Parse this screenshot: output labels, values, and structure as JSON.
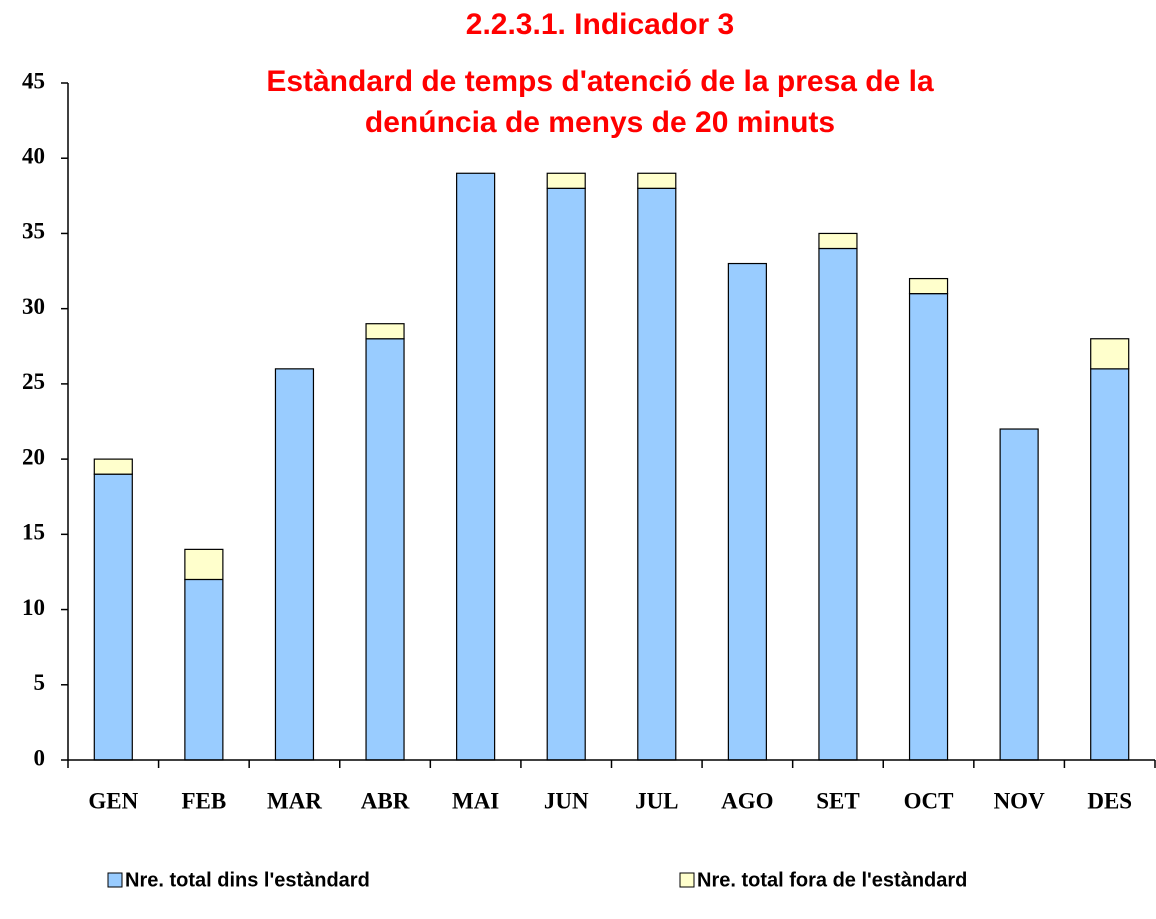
{
  "chart_data": {
    "type": "stacked_bar",
    "title": [
      "2.2.3.1. Indicador 3",
      "Estàndard de temps d'atenció de la presa de la",
      "denúncia de menys de 20 minuts"
    ],
    "categories": [
      "GEN",
      "FEB",
      "MAR",
      "ABR",
      "MAI",
      "JUN",
      "JUL",
      "AGO",
      "SET",
      "OCT",
      "NOV",
      "DES"
    ],
    "series": [
      {
        "name": "Nre. total dins l'estàndard",
        "color": "#99ccff",
        "values": [
          19,
          12,
          26,
          28,
          39,
          38,
          38,
          33,
          34,
          31,
          22,
          26
        ]
      },
      {
        "name": "Nre. total fora de l'estàndard",
        "color": "#ffffcc",
        "values": [
          1,
          2,
          0,
          1,
          0,
          1,
          1,
          0,
          1,
          1,
          0,
          2
        ]
      }
    ],
    "ylim": [
      0,
      45
    ],
    "yticks": [
      0,
      5,
      10,
      15,
      20,
      25,
      30,
      35,
      40,
      45
    ],
    "grid": false,
    "legend": "bottom"
  }
}
